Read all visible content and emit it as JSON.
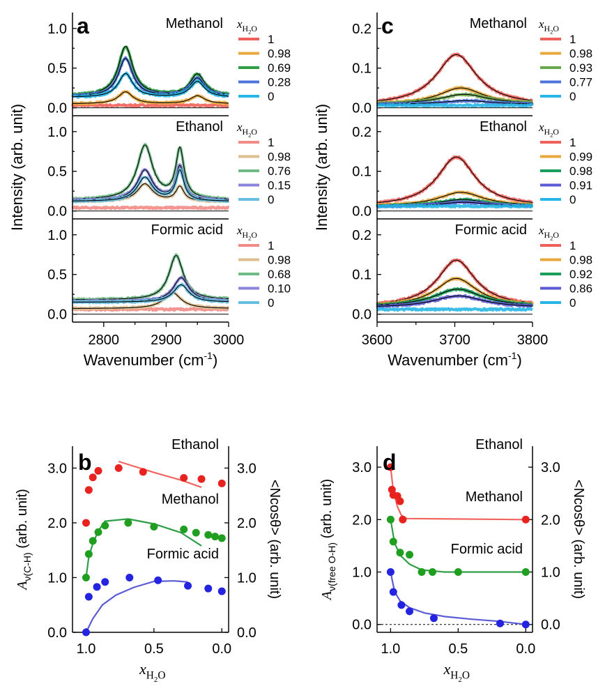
{
  "chart_data": [
    {
      "id": "a",
      "type": "line",
      "panel_letter": "a",
      "xlabel": "Wavenumber (cm⁻¹)",
      "ylabel": "Intensity (arb. unit)",
      "xlim": [
        2750,
        3000
      ],
      "xticks": [
        2800,
        2900,
        3000
      ],
      "ylim": [
        -0.1,
        1.2
      ],
      "yticks": [
        0.0,
        0.5,
        1.0
      ],
      "legend_title": "xH2O",
      "subplots": [
        {
          "name": "Methanol",
          "series": [
            {
              "name": "1",
              "color": "#f0605a",
              "peaks": []
            },
            {
              "name": "0.98",
              "color": "#e8a840",
              "peaks": [
                [
                  2835,
                  0.15,
                  14
                ],
                [
                  2950,
                  0.1,
                  14
                ]
              ]
            },
            {
              "name": "0.69",
              "color": "#2e9e47",
              "peaks": [
                [
                  2835,
                  0.62,
                  14
                ],
                [
                  2950,
                  0.27,
                  14
                ]
              ]
            },
            {
              "name": "0.28",
              "color": "#4f74dd",
              "peaks": [
                [
                  2835,
                  0.48,
                  14
                ],
                [
                  2950,
                  0.23,
                  14
                ]
              ]
            },
            {
              "name": "0",
              "color": "#27b6e6",
              "peaks": [
                [
                  2835,
                  0.3,
                  14
                ],
                [
                  2950,
                  0.2,
                  14
                ]
              ]
            }
          ],
          "baselines": [
            0.03,
            0.05,
            0.15,
            0.14,
            0.13
          ]
        },
        {
          "name": "Ethanol",
          "series": [
            {
              "name": "1",
              "color": "#f28a85",
              "peaks": []
            },
            {
              "name": "0.98",
              "color": "#ddbf90",
              "peaks": [
                [
                  2866,
                  0.22,
                  15
                ],
                [
                  2922,
                  0.18,
                  8
                ]
              ]
            },
            {
              "name": "0.76",
              "color": "#6fba85",
              "peaks": [
                [
                  2866,
                  0.68,
                  15
                ],
                [
                  2922,
                  0.62,
                  8
                ]
              ]
            },
            {
              "name": "0.15",
              "color": "#8a84dc",
              "peaks": [
                [
                  2866,
                  0.38,
                  15
                ],
                [
                  2922,
                  0.42,
                  8
                ]
              ]
            },
            {
              "name": "0",
              "color": "#67bfe0",
              "peaks": [
                [
                  2866,
                  0.3,
                  15
                ],
                [
                  2922,
                  0.38,
                  8
                ]
              ]
            }
          ],
          "baselines": [
            0.04,
            0.12,
            0.14,
            0.13,
            0.12
          ]
        },
        {
          "name": "Formic acid",
          "series": [
            {
              "name": "1",
              "color": "#f28a85",
              "peaks": []
            },
            {
              "name": "0.98",
              "color": "#ddbf90",
              "peaks": [
                [
                  2910,
                  0.2,
                  17
                ]
              ]
            },
            {
              "name": "0.68",
              "color": "#6fba85",
              "peaks": [
                [
                  2916,
                  0.56,
                  14
                ]
              ]
            },
            {
              "name": "0.10",
              "color": "#8a84dc",
              "peaks": [
                [
                  2924,
                  0.3,
                  15
                ]
              ]
            },
            {
              "name": "0",
              "color": "#67bfe0",
              "peaks": [
                [
                  2924,
                  0.22,
                  15
                ]
              ]
            }
          ],
          "baselines": [
            0.06,
            0.07,
            0.18,
            0.16,
            0.15
          ]
        }
      ]
    },
    {
      "id": "c",
      "type": "line",
      "panel_letter": "c",
      "xlabel": "Wavenumber (cm⁻¹)",
      "ylabel": "Intensity (arb. unit)",
      "xlim": [
        3600,
        3800
      ],
      "xticks": [
        3600,
        3700,
        3800
      ],
      "ylim": [
        -0.02,
        0.24
      ],
      "yticks": [
        0.0,
        0.1,
        0.2
      ],
      "legend_title": "xH2O",
      "subplots": [
        {
          "name": "Methanol",
          "series": [
            {
              "name": "1",
              "color": "#f0605a",
              "peaks": [
                [
                  3702,
                  0.128,
                  32
                ]
              ]
            },
            {
              "name": "0.98",
              "color": "#e8a840",
              "peaks": [
                [
                  3708,
                  0.042,
                  35
                ]
              ]
            },
            {
              "name": "0.93",
              "color": "#6aa84f",
              "peaks": [
                [
                  3712,
                  0.025,
                  38
                ]
              ]
            },
            {
              "name": "0.77",
              "color": "#4f74dd",
              "peaks": [
                [
                  3715,
                  0.01,
                  40
                ]
              ]
            },
            {
              "name": "0",
              "color": "#27b6e6",
              "peaks": []
            }
          ],
          "baselines": [
            0.006,
            0.008,
            0.009,
            0.008,
            0.006
          ]
        },
        {
          "name": "Ethanol",
          "series": [
            {
              "name": "1",
              "color": "#f0605a",
              "peaks": [
                [
                  3702,
                  0.125,
                  30
                ]
              ]
            },
            {
              "name": "0.99",
              "color": "#e8a840",
              "peaks": [
                [
                  3708,
                  0.035,
                  35
                ]
              ]
            },
            {
              "name": "0.98",
              "color": "#1a9e5a",
              "peaks": [
                [
                  3710,
                  0.018,
                  38
                ]
              ]
            },
            {
              "name": "0.91",
              "color": "#5b5bd6",
              "peaks": [
                [
                  3712,
                  0.012,
                  40
                ]
              ]
            },
            {
              "name": "0",
              "color": "#27b6e6",
              "peaks": []
            }
          ],
          "baselines": [
            0.011,
            0.012,
            0.011,
            0.01,
            0.012
          ]
        },
        {
          "name": "Formic acid",
          "series": [
            {
              "name": "1",
              "color": "#f0605a",
              "peaks": [
                [
                  3702,
                  0.118,
                  30
                ]
              ]
            },
            {
              "name": "0.98",
              "color": "#e8a840",
              "peaks": [
                [
                  3702,
                  0.072,
                  33
                ]
              ]
            },
            {
              "name": "0.92",
              "color": "#1a9e5a",
              "peaks": [
                [
                  3704,
                  0.045,
                  38
                ]
              ]
            },
            {
              "name": "0.86",
              "color": "#5b5bd6",
              "peaks": [
                [
                  3705,
                  0.03,
                  40
                ]
              ]
            },
            {
              "name": "0",
              "color": "#27b6e6",
              "peaks": []
            }
          ],
          "baselines": [
            0.018,
            0.018,
            0.018,
            0.016,
            0.012
          ]
        }
      ]
    },
    {
      "id": "b",
      "type": "scatter",
      "panel_letter": "b",
      "xlabel": "xH2O",
      "ylabel_left": "Aν(C-H) (arb. unit)",
      "ylabel_right": "<Ncosθ> (arb. unit)",
      "xlim": [
        1.1,
        -0.05
      ],
      "xticks": [
        1.0,
        0.5,
        0.0
      ],
      "ylim": [
        0,
        3.4
      ],
      "yticks": [
        0.0,
        1.0,
        2.0,
        3.0
      ],
      "series": [
        {
          "name": "Ethanol",
          "color": "#e8231f",
          "curve_color": "#f06560",
          "points": [
            [
              1.0,
              2.0
            ],
            [
              0.98,
              2.6
            ],
            [
              0.95,
              2.83
            ],
            [
              0.91,
              2.95
            ],
            [
              0.76,
              3.0
            ],
            [
              0.58,
              2.93
            ],
            [
              0.28,
              2.82
            ],
            [
              0.15,
              2.8
            ],
            [
              0.0,
              2.72
            ]
          ],
          "curve": [
            [
              0.76,
              3.12
            ],
            [
              0.5,
              2.92
            ],
            [
              0.3,
              2.78
            ],
            [
              0.15,
              2.65
            ]
          ]
        },
        {
          "name": "Methanol",
          "color": "#1f9e1f",
          "curve_color": "#2e9e47",
          "points": [
            [
              1.0,
              1.0
            ],
            [
              0.98,
              1.43
            ],
            [
              0.95,
              1.67
            ],
            [
              0.91,
              1.83
            ],
            [
              0.86,
              1.95
            ],
            [
              0.69,
              2.0
            ],
            [
              0.5,
              1.93
            ],
            [
              0.28,
              1.88
            ],
            [
              0.19,
              1.82
            ],
            [
              0.1,
              1.78
            ],
            [
              0.05,
              1.75
            ],
            [
              0.0,
              1.72
            ]
          ],
          "curve": [
            [
              1.0,
              1.0
            ],
            [
              0.98,
              1.38
            ],
            [
              0.95,
              1.62
            ],
            [
              0.91,
              1.85
            ],
            [
              0.86,
              2.03
            ],
            [
              0.69,
              2.07
            ],
            [
              0.5,
              1.98
            ],
            [
              0.3,
              1.82
            ],
            [
              0.15,
              1.58
            ]
          ]
        },
        {
          "name": "Formic acid",
          "color": "#2323e0",
          "curve_color": "#5b5bd6",
          "points": [
            [
              1.0,
              0.0
            ],
            [
              0.98,
              0.65
            ],
            [
              0.92,
              0.83
            ],
            [
              0.86,
              0.92
            ],
            [
              0.68,
              1.0
            ],
            [
              0.47,
              0.95
            ],
            [
              0.25,
              0.85
            ],
            [
              0.1,
              0.8
            ],
            [
              0.0,
              0.75
            ]
          ],
          "curve": [
            [
              1.0,
              0.0
            ],
            [
              0.95,
              0.25
            ],
            [
              0.88,
              0.5
            ],
            [
              0.78,
              0.68
            ],
            [
              0.65,
              0.82
            ],
            [
              0.5,
              0.93
            ],
            [
              0.35,
              0.94
            ],
            [
              0.25,
              0.92
            ]
          ]
        }
      ]
    },
    {
      "id": "d",
      "type": "scatter",
      "panel_letter": "d",
      "xlabel": "xH2O",
      "ylabel_left": "Aν(free O-H) (arb. unit)",
      "ylabel_right": "<Ncosθ> (arb. unit)",
      "xlim": [
        1.1,
        -0.05
      ],
      "xticks": [
        1.0,
        0.5,
        0.0
      ],
      "ylim": [
        -0.15,
        3.4
      ],
      "yticks": [
        0.0,
        1.0,
        2.0,
        3.0
      ],
      "dashed_zero": true,
      "series": [
        {
          "name": "Ethanol",
          "color": "#e8231f",
          "curve_color": "#f06560",
          "points": [
            [
              1.0,
              3.0
            ],
            [
              0.99,
              2.57
            ],
            [
              0.98,
              2.47
            ],
            [
              0.95,
              2.45
            ],
            [
              0.93,
              2.35
            ],
            [
              0.91,
              2.0
            ],
            [
              0.0,
              2.0
            ]
          ],
          "curve": [
            [
              1.0,
              3.0
            ],
            [
              0.98,
              2.55
            ],
            [
              0.95,
              2.25
            ],
            [
              0.92,
              2.08
            ],
            [
              0.88,
              2.02
            ],
            [
              0.0,
              2.0
            ]
          ]
        },
        {
          "name": "Methanol",
          "color": "#1f9e1f",
          "curve_color": "#2e9e47",
          "points": [
            [
              1.0,
              2.0
            ],
            [
              0.98,
              1.58
            ],
            [
              0.93,
              1.37
            ],
            [
              0.86,
              1.33
            ],
            [
              0.77,
              1.0
            ],
            [
              0.69,
              1.0
            ],
            [
              0.5,
              1.0
            ],
            [
              0.0,
              1.0
            ]
          ],
          "curve": [
            [
              1.0,
              2.0
            ],
            [
              0.97,
              1.55
            ],
            [
              0.93,
              1.32
            ],
            [
              0.86,
              1.15
            ],
            [
              0.77,
              1.04
            ],
            [
              0.6,
              1.0
            ],
            [
              0.0,
              1.0
            ]
          ]
        },
        {
          "name": "Formic acid",
          "color": "#2323e0",
          "curve_color": "#5b5bd6",
          "points": [
            [
              1.0,
              1.0
            ],
            [
              0.98,
              0.62
            ],
            [
              0.92,
              0.37
            ],
            [
              0.86,
              0.25
            ],
            [
              0.68,
              0.12
            ],
            [
              0.19,
              0.02
            ],
            [
              0.0,
              0.0
            ]
          ],
          "curve": [
            [
              1.0,
              1.0
            ],
            [
              0.97,
              0.62
            ],
            [
              0.93,
              0.45
            ],
            [
              0.86,
              0.32
            ],
            [
              0.75,
              0.22
            ],
            [
              0.6,
              0.15
            ],
            [
              0.4,
              0.1
            ],
            [
              0.2,
              0.06
            ],
            [
              0.0,
              0.0
            ]
          ]
        }
      ]
    }
  ]
}
